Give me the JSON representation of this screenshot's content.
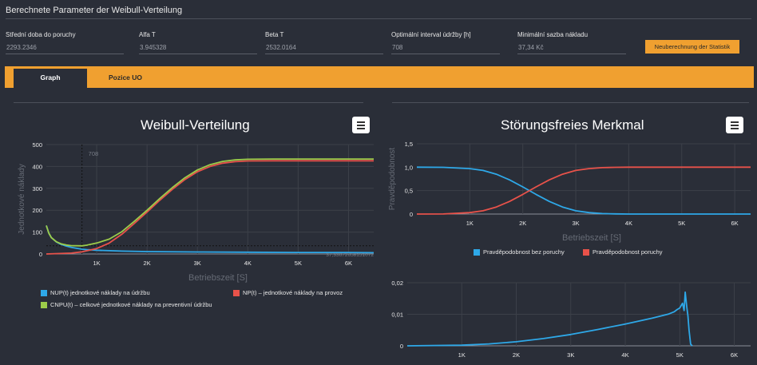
{
  "section": {
    "title": "Berechnete Parameter der Weibull-Verteilung"
  },
  "params": [
    {
      "label": "Střední doba do poruchy",
      "value": "2293.2346"
    },
    {
      "label": "Alfa T",
      "value": "3.945328"
    },
    {
      "label": "Beta T",
      "value": "2532.0164"
    },
    {
      "label": "Optimální interval údržby [h]",
      "value": "708"
    },
    {
      "label": "Minimální sazba nákladu",
      "value": "37,34 Kč"
    }
  ],
  "recalc_button": "Neuberechnung der Statistik",
  "tabs": [
    {
      "label": "Graph"
    },
    {
      "label": "Pozice UO"
    }
  ],
  "colors": {
    "accent": "#f0a030",
    "blue": "#2ea8e8",
    "red": "#e8524a",
    "green": "#9ccc4a",
    "bg": "#2a2e38"
  },
  "chart_data": [
    {
      "type": "line",
      "title": "Weibull-Verteilung",
      "xlabel": "Betriebszeit [S]",
      "ylabel": "Jednotkové náklady",
      "x_ticks": [
        "1K",
        "2K",
        "3K",
        "4K",
        "5K",
        "6K"
      ],
      "y_ticks": [
        "0",
        "100",
        "200",
        "300",
        "400",
        "500"
      ],
      "xlim": [
        0,
        6500
      ],
      "ylim": [
        0,
        500
      ],
      "vline": {
        "x": 708,
        "label": "708"
      },
      "hline": {
        "y": 37.3,
        "label": "37,33672658151072"
      },
      "series": [
        {
          "name": "NUP(t) jednotkové náklady na údržbu",
          "color": "#2ea8e8",
          "x": [
            0,
            50,
            100,
            200,
            300,
            400,
            500,
            600,
            708,
            800,
            1000,
            1500,
            2000,
            3000,
            4000,
            5000,
            6000,
            6500
          ],
          "y": [
            130,
            95,
            75,
            55,
            43,
            36,
            30,
            26,
            22,
            20,
            17,
            13,
            11,
            9,
            8,
            7,
            7,
            6
          ]
        },
        {
          "name": "NP(t) – jednotkové náklady na provoz",
          "color": "#e8524a",
          "x": [
            0,
            500,
            708,
            1000,
            1250,
            1500,
            1750,
            2000,
            2250,
            2500,
            2750,
            3000,
            3250,
            3500,
            3750,
            4000,
            4500,
            5000,
            6000,
            6500
          ],
          "y": [
            0,
            4,
            10,
            25,
            50,
            90,
            140,
            192,
            245,
            295,
            340,
            376,
            400,
            415,
            422,
            425,
            426,
            426,
            426,
            426
          ]
        },
        {
          "name": "CNPU(t) – celkové jednotkové náklady na preventivní údržbu",
          "color": "#9ccc4a",
          "x": [
            0,
            50,
            100,
            200,
            300,
            400,
            500,
            600,
            708,
            800,
            1000,
            1250,
            1500,
            1750,
            2000,
            2250,
            2500,
            2750,
            3000,
            3250,
            3500,
            3750,
            4000,
            4500,
            5000,
            6000,
            6500
          ],
          "y": [
            130,
            95,
            75,
            56,
            46,
            41,
            38,
            37.5,
            37.3,
            40,
            50,
            68,
            102,
            150,
            200,
            253,
            303,
            348,
            384,
            408,
            423,
            430,
            433,
            434,
            434,
            434,
            434
          ]
        }
      ]
    },
    {
      "type": "line",
      "title": "Störungsfreies Merkmal",
      "xlabel": "Betriebszeit [S]",
      "ylabel": "Pravděpodobnost",
      "x_ticks": [
        "1K",
        "2K",
        "3K",
        "4K",
        "5K",
        "6K"
      ],
      "y_ticks": [
        "0",
        "0,5",
        "1,0",
        "1,5"
      ],
      "xlim": [
        0,
        6300
      ],
      "ylim": [
        0,
        1.5
      ],
      "series": [
        {
          "name": "Pravděpodobnost bez poruchy",
          "color": "#2ea8e8",
          "x": [
            0,
            500,
            1000,
            1250,
            1500,
            1750,
            2000,
            2250,
            2500,
            2750,
            3000,
            3250,
            3500,
            3750,
            4000,
            6300
          ],
          "y": [
            1.0,
            0.998,
            0.97,
            0.93,
            0.85,
            0.73,
            0.58,
            0.42,
            0.27,
            0.15,
            0.07,
            0.03,
            0.01,
            0.003,
            0,
            0
          ]
        },
        {
          "name": "Pravděpodobnost poruchy",
          "color": "#e8524a",
          "x": [
            0,
            500,
            1000,
            1250,
            1500,
            1750,
            2000,
            2250,
            2500,
            2750,
            3000,
            3250,
            3500,
            3750,
            4000,
            6300
          ],
          "y": [
            0,
            0.002,
            0.03,
            0.07,
            0.15,
            0.27,
            0.42,
            0.58,
            0.73,
            0.85,
            0.93,
            0.97,
            0.99,
            0.997,
            1.0,
            1.0
          ]
        }
      ]
    },
    {
      "type": "line",
      "title": "",
      "xlabel": "",
      "ylabel": "",
      "x_ticks": [
        "1K",
        "2K",
        "3K",
        "4K",
        "5K",
        "6K"
      ],
      "y_ticks": [
        "0",
        "0,01",
        "0,02"
      ],
      "xlim": [
        0,
        6300
      ],
      "ylim": [
        0,
        0.02
      ],
      "series": [
        {
          "name": "",
          "color": "#2ea8e8",
          "x": [
            0,
            1000,
            1500,
            2000,
            2500,
            3000,
            3500,
            4000,
            4500,
            4800,
            4900,
            4950,
            5000,
            5050,
            5080,
            5100,
            5130,
            5150,
            5170,
            5200,
            5230
          ],
          "y": [
            0,
            0.0002,
            0.0006,
            0.0013,
            0.0023,
            0.0036,
            0.0052,
            0.0069,
            0.0088,
            0.0101,
            0.0108,
            0.0115,
            0.012,
            0.0135,
            0.0112,
            0.017,
            0.0122,
            0.0095,
            0.005,
            0.0005,
            0
          ]
        }
      ]
    }
  ]
}
